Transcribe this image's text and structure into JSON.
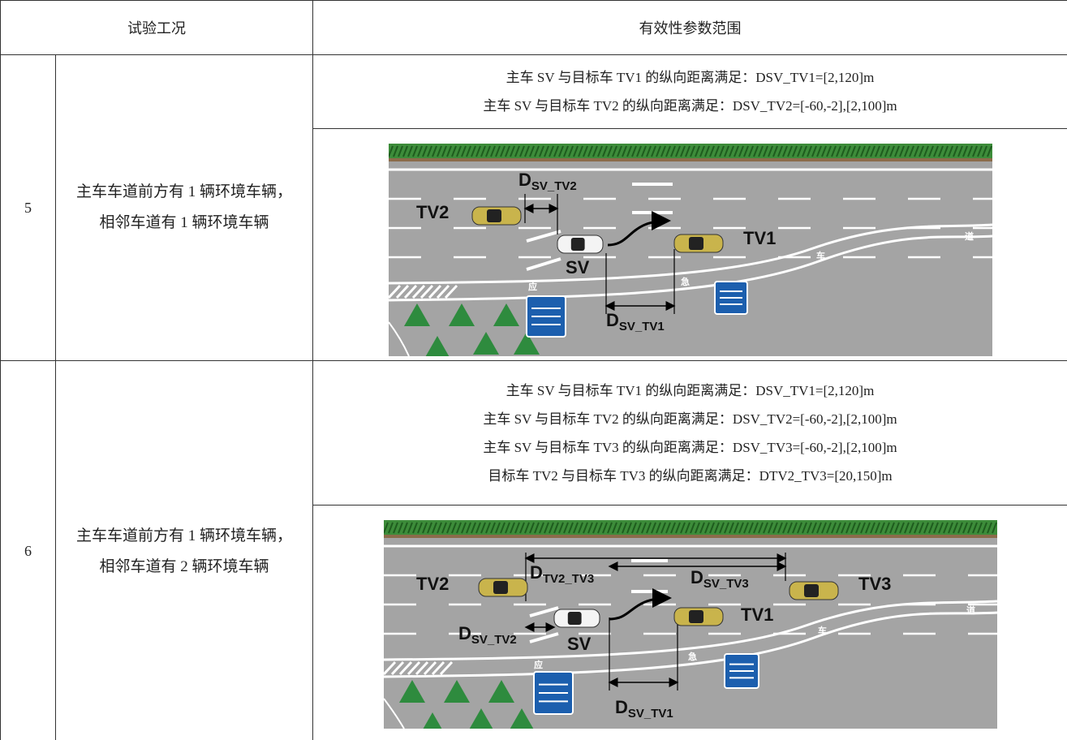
{
  "header": {
    "col1": "试验工况",
    "col2": "有效性参数范围"
  },
  "rows": [
    {
      "id": "5",
      "description": "主车车道前方有 1 辆环境车辆，相邻车道有 1 辆环境车辆",
      "conditions": [
        "主车 SV 与目标车 TV1 的纵向距离满足：DSV_TV1=[2,120]m",
        "主车 SV 与目标车 TV2 的纵向距离满足：DSV_TV2=[-60,-2],[2,100]m"
      ],
      "diagram": {
        "vehicles": [
          "TV2",
          "SV",
          "TV1"
        ],
        "distances": [
          {
            "main": "D",
            "sub": "SV_TV2"
          },
          {
            "main": "D",
            "sub": "SV_TV1"
          }
        ],
        "road_marks": [
          "道",
          "车",
          "应",
          "急"
        ]
      }
    },
    {
      "id": "6",
      "description": "主车车道前方有 1 辆环境车辆，相邻车道有 2 辆环境车辆",
      "conditions": [
        "主车 SV 与目标车 TV1 的纵向距离满足：DSV_TV1=[2,120]m",
        "主车 SV 与目标车 TV2 的纵向距离满足：DSV_TV2=[-60,-2],[2,100]m",
        "主车 SV 与目标车 TV3 的纵向距离满足：DSV_TV3=[-60,-2],[2,100]m",
        "目标车 TV2 与目标车 TV3 的纵向距离满足：DTV2_TV3=[20,150]m"
      ],
      "diagram": {
        "vehicles": [
          "TV2",
          "SV",
          "TV1",
          "TV3"
        ],
        "distances": [
          {
            "main": "D",
            "sub": "SV_TV2"
          },
          {
            "main": "D",
            "sub": "SV_TV1"
          },
          {
            "main": "D",
            "sub": "TV2_TV3"
          },
          {
            "main": "D",
            "sub": "SV_TV3"
          }
        ],
        "road_marks": [
          "道",
          "车",
          "应",
          "急"
        ]
      }
    }
  ]
}
